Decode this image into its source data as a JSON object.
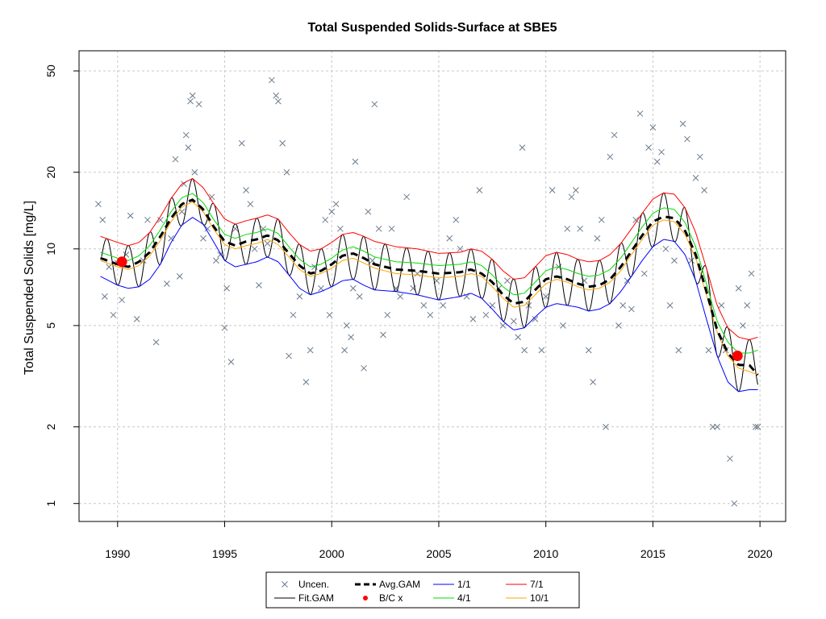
{
  "chart_data": {
    "type": "line",
    "title": "Total Suspended Solids-Surface at SBE5",
    "xlabel": "",
    "ylabel": "Total Suspended Solids [mg/L]",
    "xlim": [
      1988.2,
      2021.2
    ],
    "ylim": [
      0.85,
      60
    ],
    "y_scale": "log",
    "grid": true,
    "legend_position": "bottom",
    "x_ticks": [
      1990,
      1995,
      2000,
      2005,
      2010,
      2015,
      2020
    ],
    "x_tick_labels": [
      "1990",
      "1995",
      "2000",
      "2005",
      "2010",
      "2015",
      "2020"
    ],
    "y_ticks": [
      1,
      2,
      5,
      10,
      20,
      50
    ],
    "y_tick_labels": [
      "1",
      "2",
      "5",
      "10",
      "20",
      "50"
    ],
    "colors": {
      "uncen": "#6b7b8c",
      "fit_gam": "#000000",
      "avg_gam": "#000000",
      "bc": "#ff0000",
      "p1_1": "#0000ff",
      "p4_1": "#00dd00",
      "p7_1": "#ff0000",
      "p10_1": "#ffa500"
    },
    "legend": [
      {
        "key": "uncen",
        "label": "Uncen.",
        "symbol": "cross"
      },
      {
        "key": "fit_gam",
        "label": "Fit.GAM",
        "symbol": "line"
      },
      {
        "key": "avg_gam",
        "label": "Avg.GAM",
        "symbol": "dashed"
      },
      {
        "key": "bc",
        "label": "B/C x",
        "symbol": "dot"
      },
      {
        "key": "p1_1",
        "label": "1/1",
        "symbol": "line"
      },
      {
        "key": "p4_1",
        "label": "4/1",
        "symbol": "line"
      },
      {
        "key": "p7_1",
        "label": "7/1",
        "symbol": "line"
      },
      {
        "key": "p10_1",
        "label": "10/1",
        "symbol": "line"
      }
    ],
    "avg_gam": {
      "x": [
        1989.2,
        1990.0,
        1990.5,
        1991.0,
        1991.5,
        1992.0,
        1992.5,
        1993.0,
        1993.5,
        1994.0,
        1994.5,
        1995.0,
        1995.5,
        1996.0,
        1996.5,
        1997.0,
        1997.5,
        1998.0,
        1998.5,
        1999.0,
        1999.5,
        2000.0,
        2000.5,
        2001.0,
        2001.5,
        2002.0,
        2003.0,
        2004.0,
        2005.0,
        2006.0,
        2006.5,
        2007.0,
        2007.5,
        2008.0,
        2008.5,
        2009.0,
        2009.5,
        2010.0,
        2010.5,
        2011.0,
        2011.5,
        2012.0,
        2012.5,
        2013.0,
        2013.5,
        2014.0,
        2014.5,
        2015.0,
        2015.5,
        2016.0,
        2016.5,
        2017.0,
        2017.5,
        2018.0,
        2018.5,
        2019.0,
        2019.5,
        2019.9
      ],
      "y": [
        9.2,
        8.7,
        8.5,
        8.9,
        9.7,
        11.2,
        13.2,
        15.0,
        15.6,
        14.3,
        12.2,
        10.7,
        10.3,
        10.7,
        10.9,
        11.3,
        10.8,
        9.6,
        8.6,
        8.0,
        8.2,
        8.7,
        9.4,
        9.6,
        9.2,
        8.7,
        8.3,
        8.2,
        8.0,
        8.1,
        8.3,
        8.0,
        7.4,
        6.6,
        6.1,
        6.2,
        6.9,
        7.6,
        7.8,
        7.6,
        7.3,
        7.1,
        7.2,
        7.6,
        8.5,
        9.8,
        11.3,
        12.8,
        13.4,
        13.2,
        11.8,
        9.5,
        6.8,
        4.8,
        3.9,
        3.5,
        3.5,
        3.2
      ]
    },
    "band_1_1": {
      "x": [
        1989.2,
        1990.0,
        1990.5,
        1991.0,
        1991.5,
        1992.0,
        1992.5,
        1993.0,
        1993.5,
        1994.0,
        1994.5,
        1995.0,
        1995.5,
        1996.0,
        1996.5,
        1997.0,
        1997.5,
        1998.0,
        1998.5,
        1999.0,
        1999.5,
        2000.0,
        2000.5,
        2001.0,
        2001.5,
        2002.0,
        2003.0,
        2004.0,
        2005.0,
        2006.0,
        2006.5,
        2007.0,
        2007.5,
        2008.0,
        2008.5,
        2009.0,
        2009.5,
        2010.0,
        2010.5,
        2011.0,
        2011.5,
        2012.0,
        2012.5,
        2013.0,
        2013.5,
        2014.0,
        2014.5,
        2015.0,
        2015.5,
        2016.0,
        2016.5,
        2017.0,
        2017.5,
        2018.0,
        2018.5,
        2019.0,
        2019.5,
        2019.9
      ],
      "y": [
        7.8,
        7.2,
        7.0,
        7.1,
        7.6,
        8.7,
        10.6,
        12.4,
        13.3,
        12.5,
        10.6,
        9.0,
        8.5,
        8.7,
        8.9,
        9.3,
        8.9,
        7.9,
        7.0,
        6.6,
        6.8,
        7.1,
        7.5,
        7.6,
        7.2,
        6.9,
        6.8,
        6.6,
        6.3,
        6.5,
        6.7,
        6.4,
        5.8,
        5.2,
        4.8,
        4.9,
        5.4,
        5.9,
        6.1,
        6.0,
        5.9,
        5.7,
        5.8,
        6.1,
        6.8,
        7.8,
        9.0,
        10.2,
        10.9,
        10.7,
        9.5,
        7.5,
        5.3,
        3.8,
        3.0,
        2.75,
        2.8,
        2.8
      ]
    },
    "band_4_1": {
      "x": [
        1989.2,
        1990.0,
        1990.5,
        1991.0,
        1991.5,
        1992.0,
        1992.5,
        1993.0,
        1993.5,
        1994.0,
        1994.5,
        1995.0,
        1995.5,
        1996.0,
        1996.5,
        1997.0,
        1997.5,
        1998.0,
        1998.5,
        1999.0,
        1999.5,
        2000.0,
        2000.5,
        2001.0,
        2001.5,
        2002.0,
        2003.0,
        2004.0,
        2005.0,
        2006.0,
        2006.5,
        2007.0,
        2007.5,
        2008.0,
        2008.5,
        2009.0,
        2009.5,
        2010.0,
        2010.5,
        2011.0,
        2011.5,
        2012.0,
        2012.5,
        2013.0,
        2013.5,
        2014.0,
        2014.5,
        2015.0,
        2015.5,
        2016.0,
        2016.5,
        2017.0,
        2017.5,
        2018.0,
        2018.5,
        2019.0,
        2019.5,
        2019.9
      ],
      "y": [
        9.7,
        9.2,
        9.0,
        9.4,
        10.3,
        11.9,
        14.0,
        15.9,
        16.5,
        15.2,
        13.0,
        11.4,
        11.0,
        11.4,
        11.6,
        12.0,
        11.5,
        10.2,
        9.1,
        8.5,
        8.7,
        9.2,
        9.9,
        10.2,
        9.8,
        9.3,
        8.9,
        8.8,
        8.6,
        8.7,
        8.9,
        8.6,
        7.9,
        7.1,
        6.6,
        6.7,
        7.4,
        8.2,
        8.5,
        8.3,
        8.0,
        7.8,
        7.9,
        8.3,
        9.2,
        10.6,
        12.2,
        13.8,
        14.5,
        14.3,
        12.7,
        10.2,
        7.3,
        5.2,
        4.3,
        3.9,
        3.9,
        4.0
      ]
    },
    "band_7_1": {
      "x": [
        1989.2,
        1990.0,
        1990.5,
        1991.0,
        1991.5,
        1992.0,
        1992.5,
        1993.0,
        1993.5,
        1994.0,
        1994.5,
        1995.0,
        1995.5,
        1996.0,
        1996.5,
        1997.0,
        1997.5,
        1998.0,
        1998.5,
        1999.0,
        1999.5,
        2000.0,
        2000.5,
        2001.0,
        2001.5,
        2002.0,
        2003.0,
        2004.0,
        2005.0,
        2006.0,
        2006.5,
        2007.0,
        2007.5,
        2008.0,
        2008.5,
        2009.0,
        2009.5,
        2010.0,
        2010.5,
        2011.0,
        2011.5,
        2012.0,
        2012.5,
        2013.0,
        2013.5,
        2014.0,
        2014.5,
        2015.0,
        2015.5,
        2016.0,
        2016.5,
        2017.0,
        2017.5,
        2018.0,
        2018.5,
        2019.0,
        2019.5,
        2019.9
      ],
      "y": [
        11.2,
        10.6,
        10.3,
        10.6,
        11.6,
        13.4,
        15.8,
        18.0,
        18.9,
        17.4,
        15.0,
        13.1,
        12.5,
        12.9,
        13.2,
        13.6,
        13.1,
        11.6,
        10.4,
        9.8,
        10.0,
        10.6,
        11.4,
        11.6,
        11.2,
        10.7,
        10.2,
        10.0,
        9.6,
        9.7,
        10.0,
        9.8,
        9.1,
        8.2,
        7.6,
        7.7,
        8.5,
        9.4,
        9.7,
        9.5,
        9.1,
        8.9,
        9.0,
        9.5,
        10.5,
        12.0,
        13.8,
        15.7,
        16.6,
        16.4,
        14.5,
        11.6,
        8.4,
        6.0,
        4.9,
        4.5,
        4.4,
        4.5
      ]
    },
    "band_10_1": {
      "x": [
        1989.2,
        1990.0,
        1990.5,
        1991.0,
        1991.5,
        1992.0,
        1992.5,
        1993.0,
        1993.5,
        1994.0,
        1994.5,
        1995.0,
        1995.5,
        1996.0,
        1996.5,
        1997.0,
        1997.5,
        1998.0,
        1998.5,
        1999.0,
        1999.5,
        2000.0,
        2000.5,
        2001.0,
        2001.5,
        2002.0,
        2003.0,
        2004.0,
        2005.0,
        2006.0,
        2006.5,
        2007.0,
        2007.5,
        2008.0,
        2008.5,
        2009.0,
        2009.5,
        2010.0,
        2010.5,
        2011.0,
        2011.5,
        2012.0,
        2012.5,
        2013.0,
        2013.5,
        2014.0,
        2014.5,
        2015.0,
        2015.5,
        2016.0,
        2016.5,
        2017.0,
        2017.5,
        2018.0,
        2018.5,
        2019.0,
        2019.5,
        2019.9
      ],
      "y": [
        9.0,
        8.5,
        8.3,
        8.6,
        9.4,
        10.8,
        12.8,
        14.6,
        15.3,
        14.0,
        11.9,
        10.4,
        10.0,
        10.3,
        10.5,
        10.9,
        10.4,
        9.3,
        8.3,
        7.8,
        8.0,
        8.4,
        9.0,
        9.2,
        8.8,
        8.4,
        8.0,
        7.9,
        7.7,
        7.8,
        8.0,
        7.8,
        7.1,
        6.4,
        5.9,
        6.0,
        6.6,
        7.3,
        7.6,
        7.4,
        7.1,
        6.9,
        7.0,
        7.4,
        8.2,
        9.5,
        10.9,
        12.4,
        13.0,
        12.8,
        11.4,
        9.2,
        6.6,
        4.7,
        3.8,
        3.4,
        3.3,
        3.2
      ]
    },
    "fit_gam": {
      "x_start": 1989.25,
      "x_end": 2019.9,
      "period_years": 1.0,
      "peak_phase_years": 0.5,
      "note": ""
    },
    "uncen": {
      "x": [
        1989.1,
        1989.3,
        1989.4,
        1989.6,
        1989.8,
        1990.0,
        1990.2,
        1990.4,
        1990.6,
        1990.9,
        1991.2,
        1991.4,
        1991.8,
        1992.0,
        1992.3,
        1992.5,
        1992.7,
        1992.9,
        1993.0,
        1993.1,
        1993.2,
        1993.3,
        1993.4,
        1993.5,
        1993.6,
        1993.8,
        1994.0,
        1994.2,
        1994.4,
        1994.6,
        1994.8,
        1995.0,
        1995.1,
        1995.3,
        1995.5,
        1995.8,
        1996.0,
        1996.2,
        1996.4,
        1996.6,
        1996.8,
        1997.0,
        1997.2,
        1997.4,
        1997.5,
        1997.7,
        1997.9,
        1998.0,
        1998.2,
        1998.5,
        1998.8,
        1999.0,
        1999.2,
        1999.5,
        1999.7,
        1999.9,
        2000.0,
        2000.2,
        2000.4,
        2000.6,
        2000.7,
        2000.9,
        2001.0,
        2001.1,
        2001.3,
        2001.5,
        2001.7,
        2001.9,
        2002.0,
        2002.2,
        2002.4,
        2002.6,
        2002.8,
        2003.0,
        2003.2,
        2003.5,
        2003.8,
        2004.0,
        2004.3,
        2004.6,
        2004.9,
        2005.2,
        2005.5,
        2005.8,
        2006.0,
        2006.3,
        2006.6,
        2006.9,
        2007.2,
        2007.5,
        2007.8,
        2008.0,
        2008.2,
        2008.5,
        2008.7,
        2008.9,
        2009.0,
        2009.2,
        2009.5,
        2009.8,
        2010.0,
        2010.3,
        2010.6,
        2010.8,
        2011.0,
        2011.2,
        2011.4,
        2011.6,
        2011.8,
        2012.0,
        2012.2,
        2012.4,
        2012.6,
        2012.8,
        2013.0,
        2013.2,
        2013.4,
        2013.6,
        2013.8,
        2014.0,
        2014.2,
        2014.4,
        2014.6,
        2014.8,
        2015.0,
        2015.2,
        2015.4,
        2015.6,
        2015.8,
        2016.0,
        2016.2,
        2016.4,
        2016.6,
        2016.8,
        2017.0,
        2017.2,
        2017.4,
        2017.6,
        2017.8,
        2018.0,
        2018.2,
        2018.4,
        2018.6,
        2018.8,
        2019.0,
        2019.2,
        2019.4,
        2019.6,
        2019.8,
        2019.9
      ],
      "y": [
        15,
        13,
        6.5,
        8.5,
        5.5,
        8.8,
        6.3,
        9.5,
        13.5,
        5.3,
        9.0,
        13.0,
        4.3,
        13.0,
        7.3,
        11.0,
        22.5,
        7.8,
        14.0,
        18.0,
        28.0,
        25.0,
        38.0,
        40.0,
        20.0,
        37.0,
        11.0,
        12.0,
        16.0,
        9.0,
        9.5,
        4.9,
        7.0,
        3.6,
        12.0,
        26.0,
        17.0,
        15.0,
        10.0,
        7.2,
        12.0,
        10.5,
        46.0,
        40.0,
        38.0,
        26.0,
        20.0,
        3.8,
        5.5,
        6.5,
        3.0,
        4.0,
        8.5,
        7.0,
        13.0,
        5.5,
        14.0,
        15.0,
        12.0,
        4.0,
        5.0,
        4.5,
        7.0,
        22.0,
        6.5,
        3.4,
        14.0,
        9.0,
        37.0,
        12.0,
        4.6,
        5.5,
        12.0,
        7.0,
        6.5,
        16.0,
        7.0,
        8.0,
        6.0,
        5.5,
        7.5,
        6.0,
        11.0,
        13.0,
        10.0,
        6.5,
        5.3,
        17.0,
        5.5,
        6.0,
        7.0,
        5.0,
        7.5,
        5.2,
        4.5,
        25.0,
        4.0,
        6.0,
        5.3,
        4.0,
        6.5,
        17.0,
        8.5,
        5.0,
        12.0,
        16.0,
        17.0,
        12.0,
        7.5,
        4.0,
        3.0,
        11.0,
        13.0,
        2.0,
        23.0,
        28.0,
        5.0,
        6.0,
        7.5,
        5.8,
        13.0,
        34.0,
        8.0,
        25.0,
        30.0,
        22.0,
        24.0,
        10.0,
        6.0,
        9.0,
        4.0,
        31.0,
        27.0,
        9.0,
        19.0,
        23.0,
        17.0,
        4.0,
        2.0,
        2.0,
        6.0,
        4.0,
        1.5,
        1.0,
        7.0,
        5.0,
        6.0,
        8.0,
        2.0,
        2.0
      ]
    },
    "bc_points": {
      "x": [
        1990.2,
        2018.95
      ],
      "y": [
        8.9,
        3.8
      ]
    }
  }
}
